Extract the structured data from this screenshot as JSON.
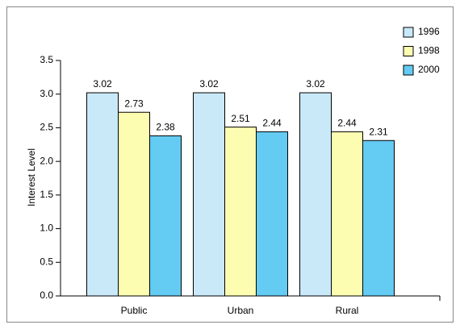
{
  "chart_data": {
    "type": "bar",
    "categories": [
      "Public",
      "Urban",
      "Rural"
    ],
    "series": [
      {
        "name": "1996",
        "color": "#c9e9f9",
        "values": [
          3.02,
          3.02,
          3.02
        ]
      },
      {
        "name": "1998",
        "color": "#fdfdb2",
        "values": [
          2.73,
          2.51,
          2.44
        ]
      },
      {
        "name": "2000",
        "color": "#64cbf2",
        "values": [
          2.38,
          2.44,
          2.31
        ]
      }
    ],
    "y_label": "Interest Level",
    "ylim": [
      0,
      3.5
    ],
    "yticks": [
      {
        "value": 0,
        "label": "0.0"
      },
      0.5,
      {
        "value": 1,
        "label": "1.0"
      },
      1.5,
      {
        "value": 2,
        "label": "2.0"
      },
      2.5,
      {
        "value": 3,
        "label": "3.0"
      },
      3.5
    ],
    "legend": "top-right"
  }
}
